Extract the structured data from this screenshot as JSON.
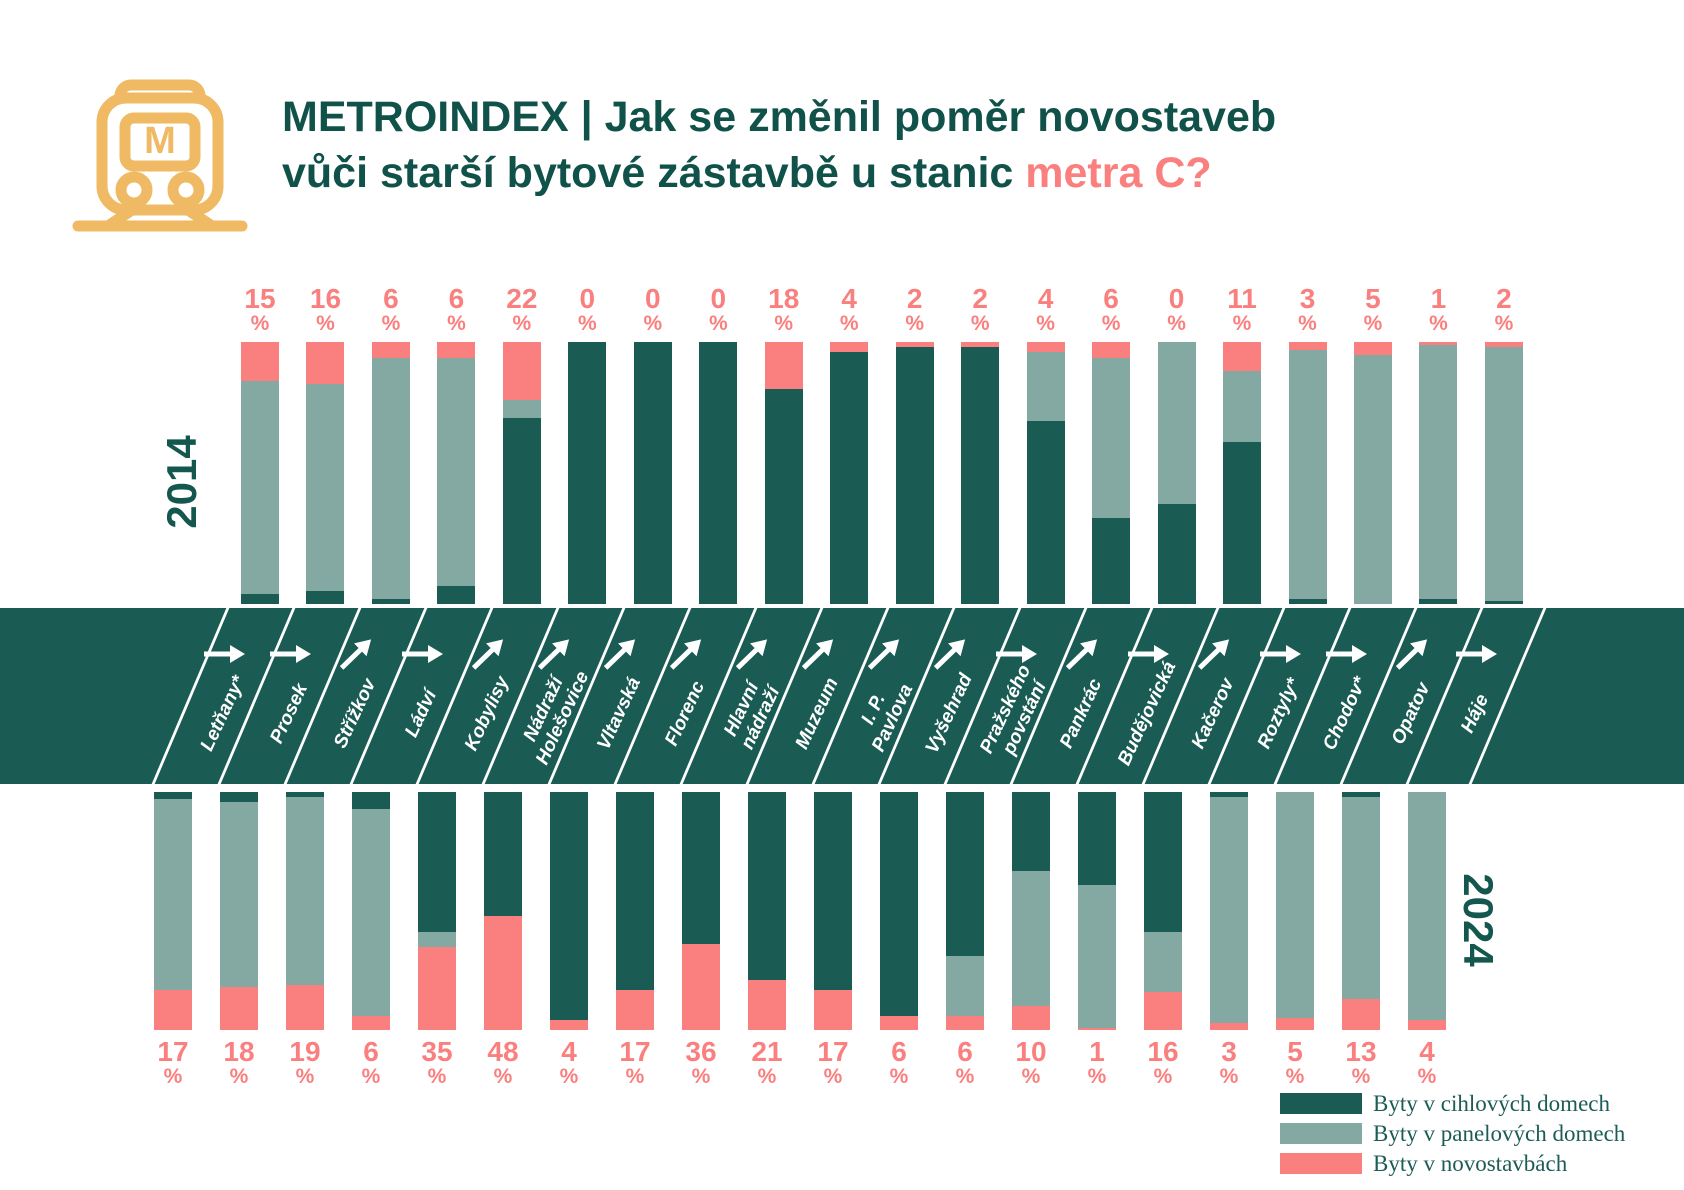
{
  "header": {
    "title_line1": "METROINDEX | Jak se změnil poměr novostaveb",
    "title_line2_prefix": "vůči starší bytové zástavbě u stanic ",
    "title_line2_highlight": "metra C?"
  },
  "axis_labels": {
    "top_year": "2014",
    "bottom_year": "2024"
  },
  "legend": {
    "items": [
      {
        "label": "Byty v cihlových domech",
        "color": "#1A5B53"
      },
      {
        "label": "Byty v panelových domech",
        "color": "#84A9A2"
      },
      {
        "label": "Byty v novostavbách",
        "color": "#F9807E"
      }
    ]
  },
  "colors": {
    "cihlove": "#1A5B53",
    "panelove": "#84A9A2",
    "novostavby": "#F9807E",
    "band": "#1A5B53",
    "title": "#10524A",
    "highlight": "#F9807E",
    "logo_yellow": "#F0B963"
  },
  "chart_data": {
    "type": "bar",
    "stacked": true,
    "unit": "%",
    "title": "METROINDEX | Jak se změnil poměr novostaveb vůči starší bytové zástavbě u stanic metra C?",
    "rows": [
      "2014",
      "2024"
    ],
    "series_names": [
      "Byty v novostavbách",
      "Byty v panelových domech",
      "Byty v cihlových domech"
    ],
    "stations": [
      {
        "name": "Letňany*",
        "arrow": "right",
        "y2014": {
          "novostavby": 15,
          "panelove": 81,
          "cihlove": 4
        },
        "y2024": {
          "novostavby": 17,
          "panelove": 80,
          "cihlove": 3
        }
      },
      {
        "name": "Prosek",
        "arrow": "right",
        "y2014": {
          "novostavby": 16,
          "panelove": 79,
          "cihlove": 5
        },
        "y2024": {
          "novostavby": 18,
          "panelove": 78,
          "cihlove": 4
        }
      },
      {
        "name": "Střížkov",
        "arrow": "up",
        "y2014": {
          "novostavby": 6,
          "panelove": 92,
          "cihlove": 2
        },
        "y2024": {
          "novostavby": 19,
          "panelove": 79,
          "cihlove": 2
        }
      },
      {
        "name": "Ládví",
        "arrow": "right",
        "y2014": {
          "novostavby": 6,
          "panelove": 87,
          "cihlove": 7
        },
        "y2024": {
          "novostavby": 6,
          "panelove": 87,
          "cihlove": 7
        }
      },
      {
        "name": "Kobylisy",
        "arrow": "up",
        "y2014": {
          "novostavby": 22,
          "panelove": 7,
          "cihlove": 71
        },
        "y2024": {
          "novostavby": 35,
          "panelove": 6,
          "cihlove": 59
        }
      },
      {
        "name": "Nádraží\nHolešovice",
        "arrow": "up",
        "y2014": {
          "novostavby": 0,
          "panelove": 0,
          "cihlove": 100
        },
        "y2024": {
          "novostavby": 48,
          "panelove": 0,
          "cihlove": 52
        }
      },
      {
        "name": "Vltavská",
        "arrow": "up",
        "y2014": {
          "novostavby": 0,
          "panelove": 0,
          "cihlove": 100
        },
        "y2024": {
          "novostavby": 4,
          "panelove": 0,
          "cihlove": 96
        }
      },
      {
        "name": "Florenc",
        "arrow": "up",
        "y2014": {
          "novostavby": 0,
          "panelove": 0,
          "cihlove": 100
        },
        "y2024": {
          "novostavby": 17,
          "panelove": 0,
          "cihlove": 83
        }
      },
      {
        "name": "Hlavní\nnádraží",
        "arrow": "up",
        "y2014": {
          "novostavby": 18,
          "panelove": 0,
          "cihlove": 82
        },
        "y2024": {
          "novostavby": 36,
          "panelove": 0,
          "cihlove": 64
        }
      },
      {
        "name": "Muzeum",
        "arrow": "up",
        "y2014": {
          "novostavby": 4,
          "panelove": 0,
          "cihlove": 96
        },
        "y2024": {
          "novostavby": 21,
          "panelove": 0,
          "cihlove": 79
        }
      },
      {
        "name": "I. P. Pavlova",
        "arrow": "up",
        "y2014": {
          "novostavby": 2,
          "panelove": 0,
          "cihlove": 98
        },
        "y2024": {
          "novostavby": 17,
          "panelove": 0,
          "cihlove": 83
        }
      },
      {
        "name": "Vyšehrad",
        "arrow": "up",
        "y2014": {
          "novostavby": 2,
          "panelove": 0,
          "cihlove": 98
        },
        "y2024": {
          "novostavby": 6,
          "panelove": 0,
          "cihlove": 94
        }
      },
      {
        "name": "Pražského\npovstání",
        "arrow": "right",
        "y2014": {
          "novostavby": 4,
          "panelove": 26,
          "cihlove": 70
        },
        "y2024": {
          "novostavby": 6,
          "panelove": 25,
          "cihlove": 69
        }
      },
      {
        "name": "Pankrác",
        "arrow": "up",
        "y2014": {
          "novostavby": 6,
          "panelove": 61,
          "cihlove": 33
        },
        "y2024": {
          "novostavby": 10,
          "panelove": 57,
          "cihlove": 33
        }
      },
      {
        "name": "Budějovická",
        "arrow": "right",
        "y2014": {
          "novostavby": 0,
          "panelove": 62,
          "cihlove": 38
        },
        "y2024": {
          "novostavby": 1,
          "panelove": 60,
          "cihlove": 39
        }
      },
      {
        "name": "Kačerov",
        "arrow": "up",
        "y2014": {
          "novostavby": 11,
          "panelove": 27,
          "cihlove": 62
        },
        "y2024": {
          "novostavby": 16,
          "panelove": 25,
          "cihlove": 59
        }
      },
      {
        "name": "Roztyly*",
        "arrow": "right",
        "y2014": {
          "novostavby": 3,
          "panelove": 95,
          "cihlove": 2
        },
        "y2024": {
          "novostavby": 3,
          "panelove": 95,
          "cihlove": 2
        }
      },
      {
        "name": "Chodov*",
        "arrow": "right",
        "y2014": {
          "novostavby": 5,
          "panelove": 95,
          "cihlove": 0
        },
        "y2024": {
          "novostavby": 5,
          "panelove": 95,
          "cihlove": 0
        }
      },
      {
        "name": "Opatov",
        "arrow": "up",
        "y2014": {
          "novostavby": 1,
          "panelove": 97,
          "cihlove": 2
        },
        "y2024": {
          "novostavby": 13,
          "panelove": 85,
          "cihlove": 2
        }
      },
      {
        "name": "Háje",
        "arrow": "right",
        "y2014": {
          "novostavby": 2,
          "panelove": 97,
          "cihlove": 1
        },
        "y2024": {
          "novostavby": 4,
          "panelove": 96,
          "cihlove": 0
        }
      }
    ]
  }
}
